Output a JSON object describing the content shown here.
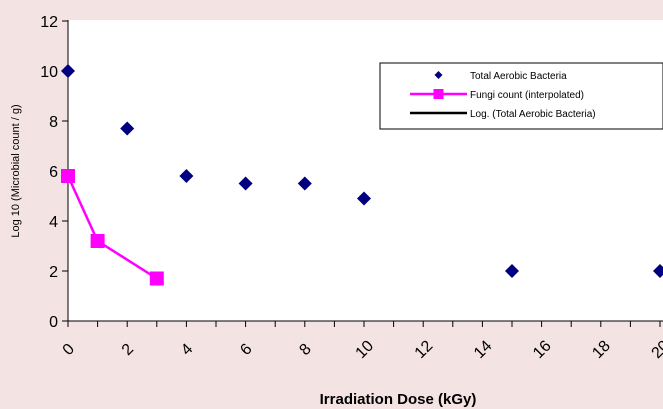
{
  "chart_data": {
    "type": "scatter",
    "xlabel": "Irradiation Dose (kGy)",
    "ylabel": "Log 10 (Microbial count / g)",
    "xlim": [
      0,
      20
    ],
    "ylim": [
      0,
      12
    ],
    "x_ticks": [
      0,
      2,
      4,
      6,
      8,
      10,
      12,
      14,
      16,
      18,
      20
    ],
    "y_ticks": [
      0,
      2,
      4,
      6,
      8,
      10,
      12
    ],
    "grid": false,
    "legend_position": "top-right",
    "series": [
      {
        "name": "Total Aerobic Bacteria",
        "style": "markers",
        "marker": "diamond",
        "color": "#000080",
        "x": [
          0,
          2,
          4,
          6,
          8,
          10,
          15,
          20
        ],
        "y": [
          10.0,
          7.7,
          5.8,
          5.5,
          5.5,
          4.9,
          2.0,
          2.0
        ]
      },
      {
        "name": "Fungi count (interpolated)",
        "style": "line-markers",
        "marker": "square",
        "color": "#ff00ff",
        "x": [
          0,
          1,
          3
        ],
        "y": [
          5.8,
          3.2,
          1.7
        ]
      },
      {
        "name": "Log. (Total Aerobic Bacteria)",
        "style": "line",
        "color": "#000000",
        "x": [],
        "y": []
      }
    ]
  }
}
